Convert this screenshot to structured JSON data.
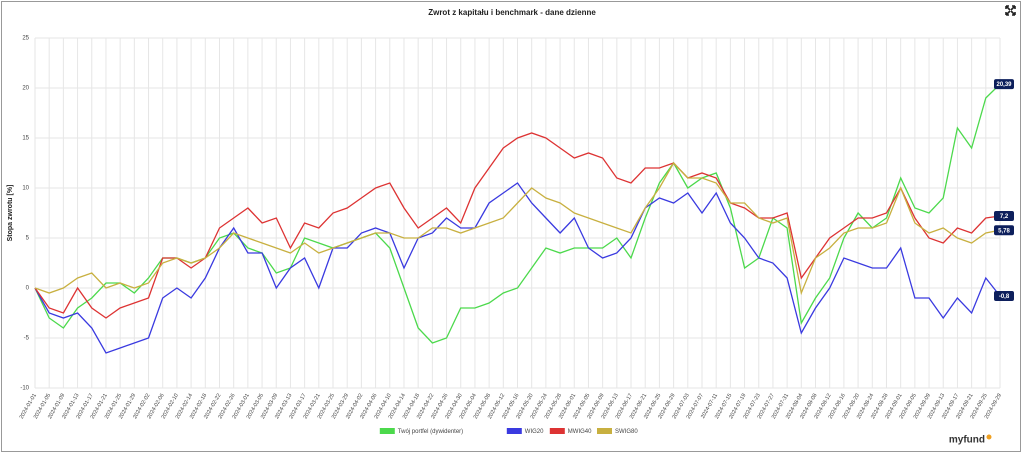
{
  "chart_data": {
    "type": "line",
    "title": "Zwrot z kapitału i benchmark - dane dzienne",
    "y_label": "Stopa zwrotu [%]",
    "logo": "myfund",
    "categories": [
      "2024-01-01",
      "2024-01-05",
      "2024-01-09",
      "2024-01-13",
      "2024-01-17",
      "2024-01-21",
      "2024-01-25",
      "2024-01-29",
      "2024-02-02",
      "2024-02-06",
      "2024-02-10",
      "2024-02-14",
      "2024-02-18",
      "2024-02-22",
      "2024-02-26",
      "2024-03-01",
      "2024-03-05",
      "2024-03-09",
      "2024-03-13",
      "2024-03-17",
      "2024-03-21",
      "2024-03-25",
      "2024-03-29",
      "2024-04-02",
      "2024-04-06",
      "2024-04-10",
      "2024-04-14",
      "2024-04-18",
      "2024-04-22",
      "2024-04-26",
      "2024-04-30",
      "2024-05-04",
      "2024-05-08",
      "2024-05-12",
      "2024-05-16",
      "2024-05-20",
      "2024-05-24",
      "2024-05-28",
      "2024-06-01",
      "2024-06-05",
      "2024-06-09",
      "2024-06-13",
      "2024-06-17",
      "2024-06-21",
      "2024-06-25",
      "2024-06-29",
      "2024-07-03",
      "2024-07-07",
      "2024-07-11",
      "2024-07-15",
      "2024-07-19",
      "2024-07-23",
      "2024-07-27",
      "2024-07-31",
      "2024-08-04",
      "2024-08-08",
      "2024-08-12",
      "2024-08-16",
      "2024-08-20",
      "2024-08-24",
      "2024-08-28",
      "2024-09-01",
      "2024-09-05",
      "2024-09-09",
      "2024-09-13",
      "2024-09-17",
      "2024-09-21",
      "2024-09-25",
      "2024-09-29"
    ],
    "series": [
      {
        "name": "Twój portfel (dywidenter)",
        "color": "#4cd94c",
        "end_label": "20,39",
        "values": [
          0,
          -3,
          -4,
          -2,
          -1,
          0.5,
          0.5,
          -0.5,
          1,
          3,
          3,
          2.5,
          3,
          5,
          5.5,
          4,
          3.5,
          1.5,
          2,
          5,
          4.5,
          4,
          4.5,
          5,
          5.5,
          4,
          0,
          -4,
          -5.5,
          -5,
          -2,
          -2,
          -1.5,
          -0.5,
          0,
          2,
          4,
          3.5,
          4,
          4,
          4,
          5,
          3,
          7,
          10.5,
          12.5,
          10,
          11,
          11.5,
          8,
          2,
          3,
          7,
          6,
          -3.5,
          -1,
          1,
          5,
          7.5,
          6,
          7,
          11,
          8,
          7.5,
          9,
          16,
          14,
          19,
          20.39
        ]
      },
      {
        "name": "WIG20",
        "color": "#3a3ae0",
        "end_label": "-0,8",
        "values": [
          0,
          -2.5,
          -3,
          -2.5,
          -4,
          -6.5,
          -6,
          -5.5,
          -5,
          -1,
          0,
          -1,
          1,
          4,
          6,
          3.5,
          3.5,
          0,
          2,
          3,
          0,
          4,
          4,
          5.5,
          6,
          5.5,
          2,
          5,
          5.5,
          7,
          6,
          6,
          8.5,
          9.5,
          10.5,
          8.5,
          7,
          5.5,
          7,
          4,
          3,
          3.5,
          5,
          8,
          9,
          8.5,
          9.5,
          7.5,
          9.5,
          6.5,
          5,
          3,
          2.5,
          1,
          -4.5,
          -2,
          0,
          3,
          2.5,
          2,
          2,
          4,
          -1,
          -1,
          -3,
          -1,
          -2.5,
          1,
          -0.8
        ]
      },
      {
        "name": "MWIG40",
        "color": "#dd3333",
        "end_label": "7,2",
        "values": [
          0,
          -2,
          -2.5,
          0,
          -2,
          -3,
          -2,
          -1.5,
          -1,
          3,
          3,
          2,
          3,
          6,
          7,
          8,
          6.5,
          7,
          4,
          6.5,
          6,
          7.5,
          8,
          9,
          10,
          10.5,
          8,
          6,
          7,
          8,
          6.5,
          10,
          12,
          14,
          15,
          15.5,
          15,
          14,
          13,
          13.5,
          13,
          11,
          10.5,
          12,
          12,
          12.5,
          11,
          11.5,
          11,
          8.5,
          8,
          7,
          7,
          7.5,
          1,
          3,
          5,
          6,
          7,
          7,
          7.5,
          10,
          7,
          5,
          4.5,
          6,
          5.5,
          7,
          7.2
        ]
      },
      {
        "name": "SWIG80",
        "color": "#c8b040",
        "end_label": "5,78",
        "values": [
          0,
          -0.5,
          0,
          1,
          1.5,
          0,
          0.5,
          0,
          0.5,
          2.5,
          3,
          2.5,
          3,
          4,
          5.5,
          5,
          4.5,
          4,
          3.5,
          4.5,
          3.5,
          4,
          4.5,
          5,
          5.5,
          5.5,
          5,
          5,
          6,
          6,
          5.5,
          6,
          6.5,
          7,
          8.5,
          10,
          9,
          8.5,
          7.5,
          7,
          6.5,
          6,
          5.5,
          8,
          10,
          12.5,
          11,
          11,
          10.5,
          8.5,
          8.5,
          7,
          6.5,
          7,
          -0.5,
          3,
          4,
          5.5,
          6,
          6,
          6.5,
          10,
          6.5,
          5.5,
          6,
          5,
          4.5,
          5.5,
          5.78
        ]
      }
    ],
    "ylim": [
      -10,
      25
    ],
    "yticks": [
      -10,
      -5,
      0,
      5,
      10,
      15,
      20,
      25
    ],
    "grid": true
  }
}
